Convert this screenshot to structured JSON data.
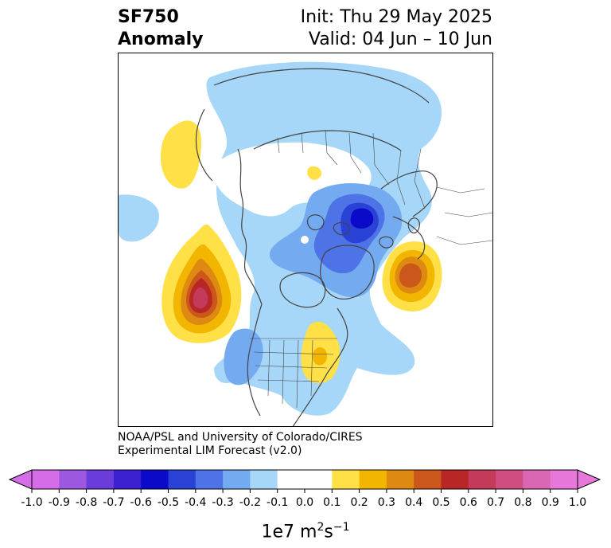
{
  "title": {
    "variable": "SF750",
    "field": "Anomaly",
    "init": "Init: Thu 29 May 2025",
    "valid": "Valid: 04 Jun – 10 Jun"
  },
  "credit": {
    "line1": "NOAA/PSL and University of Colorado/CIRES",
    "line2": "Experimental LIM Forecast (v2.0)"
  },
  "colorbar": {
    "ticks": [
      "-1.0",
      "-0.9",
      "-0.8",
      "-0.7",
      "-0.6",
      "-0.5",
      "-0.4",
      "-0.3",
      "-0.2",
      "-0.1",
      "0.0",
      "0.1",
      "0.2",
      "0.3",
      "0.4",
      "0.5",
      "0.6",
      "0.7",
      "0.8",
      "0.9",
      "1.0"
    ],
    "colors": [
      "#d66de8",
      "#9d57e0",
      "#6a3cd9",
      "#3a20cf",
      "#0a0ac8",
      "#2a41d6",
      "#4d73e6",
      "#74aaf0",
      "#a7d7f8",
      "#ffffff",
      "#ffffff",
      "#ffe047",
      "#f2b600",
      "#de8a12",
      "#cc571a",
      "#b92626",
      "#c43a5a",
      "#cf4e82",
      "#d967b4",
      "#e777d9"
    ],
    "low_extend_color": "#d66de8",
    "high_extend_color": "#e777d9",
    "unit_base": "1e7 m",
    "unit_exp1": "2",
    "unit_s": "s",
    "unit_exp2": "−1"
  },
  "map": {
    "projection": "north-polar-stereographic",
    "anomaly_centers": [
      {
        "region": "central North Pacific",
        "sign": "positive",
        "peak": 0.7
      },
      {
        "region": "northwest Pacific",
        "sign": "positive",
        "peak": 0.1
      },
      {
        "region": "eastern North America",
        "sign": "positive",
        "peak": 0.2
      },
      {
        "region": "northeast Atlantic / Western Europe",
        "sign": "positive",
        "peak": 0.4
      },
      {
        "region": "Greenland / Arctic",
        "sign": "negative",
        "peak": -0.6
      },
      {
        "region": "Siberia / Arctic",
        "sign": "negative",
        "peak": -0.2
      }
    ]
  }
}
